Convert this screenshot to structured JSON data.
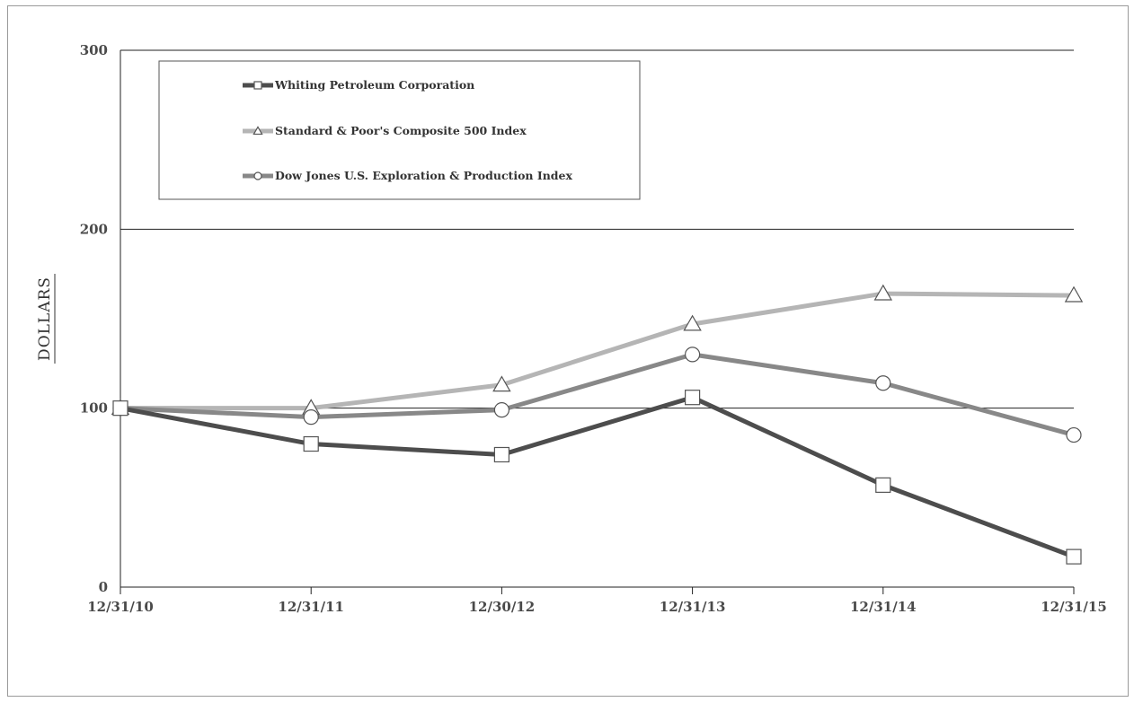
{
  "chart_data": {
    "type": "line",
    "title": "",
    "xlabel": "",
    "ylabel": "DOLLARS",
    "ylim": [
      0,
      300
    ],
    "yticks": [
      0,
      100,
      200,
      300
    ],
    "grid": true,
    "legend_position": "top-left",
    "categories": [
      "12/31/10",
      "12/31/11",
      "12/30/12",
      "12/31/13",
      "12/31/14",
      "12/31/15"
    ],
    "series": [
      {
        "name": "Whiting Petroleum Corporation",
        "color": "#4d4d4d",
        "marker": "square",
        "values": [
          100,
          80,
          74,
          106,
          57,
          17
        ]
      },
      {
        "name": "Standard & Poor's Composite 500 Index",
        "color": "#b5b5b5",
        "marker": "triangle",
        "values": [
          100,
          100,
          113,
          147,
          164,
          163
        ]
      },
      {
        "name": "Dow Jones U.S. Exploration & Production Index",
        "color": "#888888",
        "marker": "circle",
        "values": [
          100,
          95,
          99,
          130,
          114,
          85
        ]
      }
    ]
  }
}
